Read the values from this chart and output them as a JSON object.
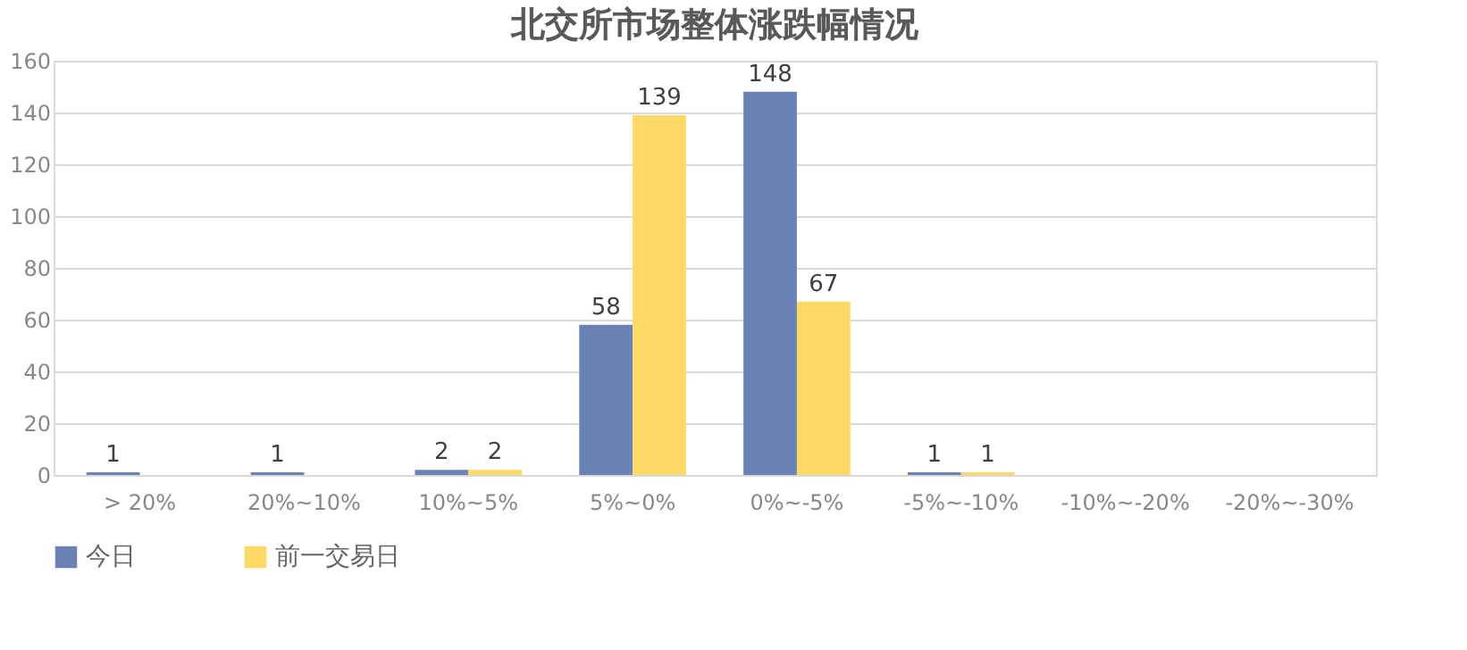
{
  "chart_data": {
    "type": "bar",
    "title": "北交所市场整体涨跌幅情况",
    "categories": [
      "> 20%",
      "20%~10%",
      "10%~5%",
      "5%~0%",
      "0%~-5%",
      "-5%~-10%",
      "-10%~-20%",
      "-20%~-30%"
    ],
    "series": [
      {
        "name": "今日",
        "color": "#6a82b5",
        "values": [
          1,
          1,
          2,
          58,
          148,
          1,
          null,
          null
        ]
      },
      {
        "name": "前一交易日",
        "color": "#ffd966",
        "values": [
          null,
          null,
          2,
          139,
          67,
          1,
          null,
          null
        ]
      }
    ],
    "ylim": [
      0,
      160
    ],
    "yticks": [
      0,
      20,
      40,
      60,
      80,
      100,
      120,
      140,
      160
    ],
    "grid": "y",
    "legend": "bottom",
    "data_labels": true
  }
}
